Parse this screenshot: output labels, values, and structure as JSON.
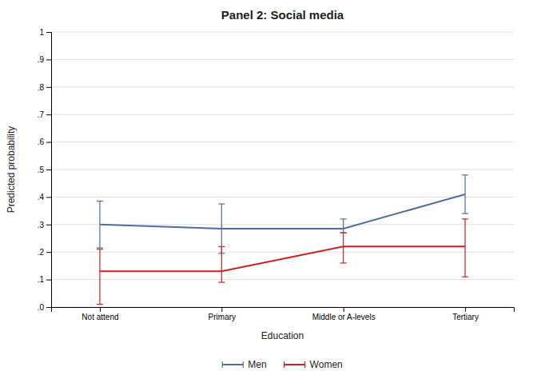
{
  "chart_data": {
    "type": "line",
    "title": "Panel 2: Social media",
    "xlabel": "Education",
    "ylabel": "Predicted probability",
    "categories": [
      "Not attend",
      "Primary",
      "Middle or A-levels",
      "Tertiary"
    ],
    "series": [
      {
        "name": "Men",
        "color": "#4e6e9e",
        "values": [
          0.3,
          0.285,
          0.285,
          0.41
        ],
        "ci_lower": [
          0.215,
          0.195,
          0.27,
          0.34
        ],
        "ci_upper": [
          0.385,
          0.375,
          0.32,
          0.48
        ]
      },
      {
        "name": "Women",
        "color": "#cc2222",
        "values": [
          0.13,
          0.13,
          0.22,
          0.22
        ],
        "ci_lower": [
          0.01,
          0.09,
          0.16,
          0.11
        ],
        "ci_upper": [
          0.21,
          0.22,
          0.27,
          0.32
        ]
      }
    ],
    "ylim": [
      0,
      1.0
    ],
    "yticks": [
      {
        "value": 0.0,
        "label": ".0"
      },
      {
        "value": 0.1,
        "label": ".1"
      },
      {
        "value": 0.2,
        "label": ".2"
      },
      {
        "value": 0.3,
        "label": ".3"
      },
      {
        "value": 0.4,
        "label": ".4"
      },
      {
        "value": 0.5,
        "label": ".5"
      },
      {
        "value": 0.6,
        "label": ".6"
      },
      {
        "value": 0.7,
        "label": ".7"
      },
      {
        "value": 0.8,
        "label": ".8"
      },
      {
        "value": 0.9,
        "label": ".9"
      },
      1
    ],
    "grid": true,
    "legend": "bottom"
  }
}
